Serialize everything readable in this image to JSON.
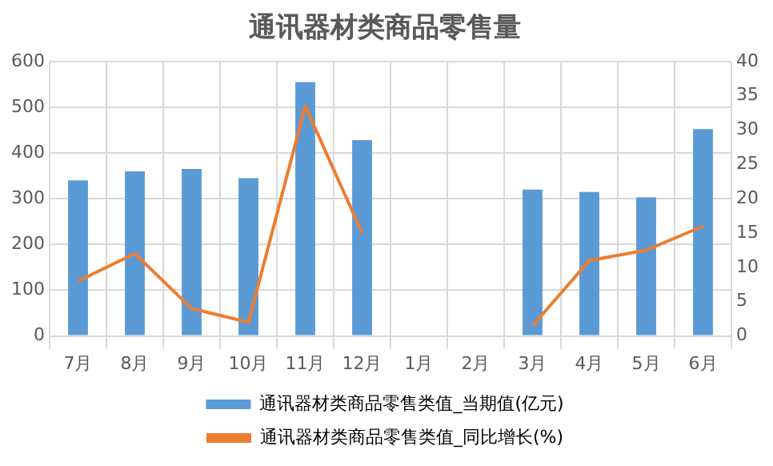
{
  "chart_data": {
    "type": "bar",
    "title": "通讯器材类商品零售量",
    "categories": [
      "7月",
      "8月",
      "9月",
      "10月",
      "11月",
      "12月",
      "1月",
      "2月",
      "3月",
      "4月",
      "5月",
      "6月"
    ],
    "series": [
      {
        "name": "通讯器材类商品零售类值_当期值(亿元)",
        "color": "#5b9bd5",
        "values": [
          340,
          360,
          365,
          345,
          555,
          428,
          null,
          null,
          320,
          315,
          303,
          452
        ]
      },
      {
        "name": "通讯器材类商品零售类值_同比增长(%)",
        "type": "line",
        "axis": "y2",
        "color": "#ed7d31",
        "values": [
          8,
          12,
          4,
          2,
          33.5,
          15,
          null,
          null,
          1.5,
          11,
          12.5,
          16
        ]
      }
    ],
    "ylim": [
      0,
      600
    ],
    "yticks": [
      0,
      100,
      200,
      300,
      400,
      500,
      600
    ],
    "y2lim": [
      0,
      40
    ],
    "y2ticks": [
      0,
      5,
      10,
      15,
      20,
      25,
      30,
      35,
      40
    ],
    "grid": true,
    "legend": "bottom",
    "marker": "none"
  }
}
